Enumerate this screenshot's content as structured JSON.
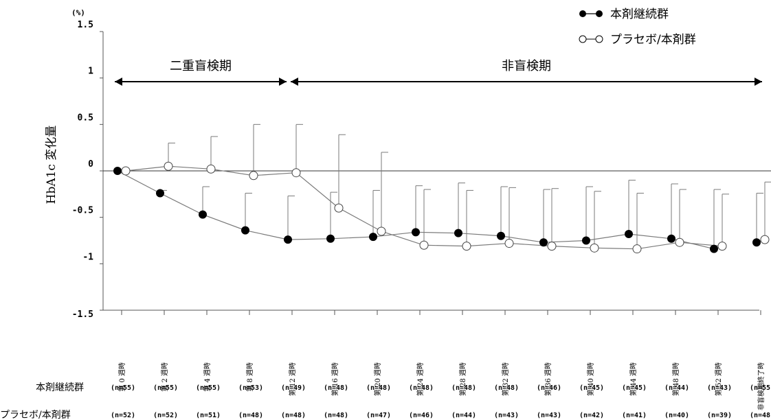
{
  "chart_data": {
    "type": "line",
    "unit_label": "(%)",
    "ylabel": "HbA1c 変化量",
    "ylim": [
      -1.5,
      1.5
    ],
    "yticks": [
      {
        "value": 1.5,
        "label": "1.5"
      },
      {
        "value": 1,
        "label": "1"
      },
      {
        "value": 0.5,
        "label": "0.5"
      },
      {
        "value": 0,
        "label": "0"
      },
      {
        "value": -0.5,
        "label": "-0.5"
      },
      {
        "value": -1,
        "label": "-1"
      },
      {
        "value": -1.5,
        "label": "-1.5"
      }
    ],
    "categories": [
      "第 0 週時",
      "第 2 週時",
      "第 4 週時",
      "第 8 週時",
      "第 12 週時",
      "第 16 週時",
      "第 20 週時",
      "第 24 週時",
      "第 28 週時",
      "第 32 週時",
      "第 36 週時",
      "第 40 週時",
      "第 44 週時",
      "第 48 週時",
      "第 52 週時",
      "非盲検期終了時"
    ],
    "periods": [
      {
        "label": "二重盲検期",
        "from": 0,
        "to": 4
      },
      {
        "label": "非盲検期",
        "from": 4,
        "to": 15
      }
    ],
    "series": [
      {
        "name": "本剤継続群",
        "marker": "filled",
        "values": [
          0.0,
          -0.24,
          -0.47,
          -0.64,
          -0.74,
          -0.73,
          -0.71,
          -0.66,
          -0.67,
          -0.7,
          -0.77,
          -0.75,
          -0.68,
          -0.73,
          -0.84,
          -0.77
        ],
        "error_upper": [
          0.0,
          0.03,
          0.3,
          0.4,
          0.47,
          0.5,
          0.5,
          0.5,
          0.54,
          0.53,
          0.57,
          0.58,
          0.58,
          0.59,
          0.64,
          0.53
        ],
        "n": [
          "(n=55)",
          "(n=55)",
          "(n=55)",
          "(n=53)",
          "(n=49)",
          "(n=48)",
          "(n=48)",
          "(n=48)",
          "(n=48)",
          "(n=48)",
          "(n=46)",
          "(n=45)",
          "(n=45)",
          "(n=44)",
          "(n=43)",
          "(n=55)"
        ]
      },
      {
        "name": "プラセボ/本剤群",
        "marker": "open",
        "values": [
          0.0,
          0.05,
          0.02,
          -0.05,
          -0.02,
          -0.4,
          -0.65,
          -0.8,
          -0.81,
          -0.78,
          -0.81,
          -0.83,
          -0.84,
          -0.77,
          -0.81,
          -0.74
        ],
        "error_upper": [
          0.0,
          0.25,
          0.35,
          0.55,
          0.52,
          0.79,
          0.85,
          0.6,
          0.6,
          0.6,
          0.62,
          0.61,
          0.6,
          0.57,
          0.56,
          0.62
        ],
        "n": [
          "(n=52)",
          "(n=52)",
          "(n=51)",
          "(n=48)",
          "(n=48)",
          "(n=48)",
          "(n=47)",
          "(n=46)",
          "(n=44)",
          "(n=43)",
          "(n=43)",
          "(n=42)",
          "(n=41)",
          "(n=40)",
          "(n=39)",
          "(n=48)"
        ]
      }
    ],
    "legend_position": "top-right",
    "colors": {
      "line": "#7a7a7a",
      "axis": "#555555",
      "marker_fill": "#000000",
      "open_fill": "#ffffff"
    }
  }
}
